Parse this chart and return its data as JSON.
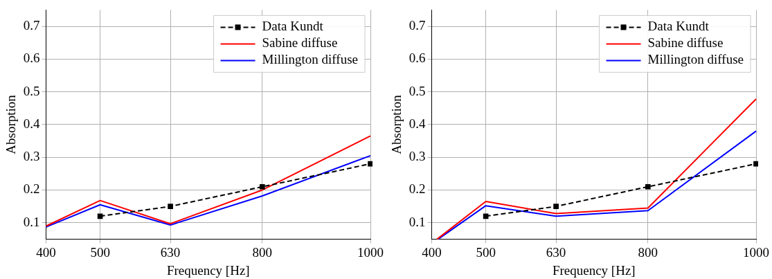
{
  "chart_data": [
    {
      "type": "line",
      "xlabel": "Frequency [Hz]",
      "ylabel": "Absorption",
      "xlim": [
        400,
        1000
      ],
      "xticks": [
        400,
        500,
        630,
        800,
        1000
      ],
      "ylim": [
        0.05,
        0.75
      ],
      "yticks": [
        0.1,
        0.2,
        0.3,
        0.4,
        0.5,
        0.6,
        0.7
      ],
      "grid": true,
      "legend": "top right",
      "series": [
        {
          "name": "Data Kundt",
          "color": "#000000",
          "marker": "square",
          "line_style": "dashed",
          "x": [
            500,
            630,
            800,
            1000
          ],
          "values": [
            0.12,
            0.15,
            0.21,
            0.28
          ]
        },
        {
          "name": "Sabine diffuse",
          "color": "#ff0000",
          "marker": "none",
          "line_style": "solid",
          "x": [
            400,
            500,
            630,
            800,
            1000
          ],
          "values": [
            0.09,
            0.168,
            0.097,
            0.2,
            0.365
          ]
        },
        {
          "name": "Millington diffuse",
          "color": "#0000ff",
          "marker": "none",
          "line_style": "solid",
          "x": [
            400,
            500,
            630,
            800,
            1000
          ],
          "values": [
            0.087,
            0.155,
            0.093,
            0.182,
            0.305
          ]
        }
      ]
    },
    {
      "type": "line",
      "xlabel": "Frequency [Hz]",
      "ylabel": "Absorption",
      "xlim": [
        400,
        1000
      ],
      "xticks": [
        400,
        500,
        630,
        800,
        1000
      ],
      "ylim": [
        0.05,
        0.75
      ],
      "yticks": [
        0.1,
        0.2,
        0.3,
        0.4,
        0.5,
        0.6,
        0.7
      ],
      "grid": true,
      "legend": "top right",
      "series": [
        {
          "name": "Data Kundt",
          "color": "#000000",
          "marker": "square",
          "line_style": "dashed",
          "x": [
            500,
            630,
            800,
            1000
          ],
          "values": [
            0.12,
            0.15,
            0.21,
            0.28
          ]
        },
        {
          "name": "Sabine diffuse",
          "color": "#ff0000",
          "marker": "none",
          "line_style": "solid",
          "x": [
            410,
            500,
            630,
            800,
            1000
          ],
          "values": [
            0.05,
            0.165,
            0.128,
            0.145,
            0.478
          ]
        },
        {
          "name": "Millington diffuse",
          "color": "#0000ff",
          "marker": "none",
          "line_style": "solid",
          "x": [
            412,
            500,
            630,
            800,
            1000
          ],
          "values": [
            0.05,
            0.152,
            0.12,
            0.137,
            0.38
          ]
        }
      ]
    }
  ]
}
